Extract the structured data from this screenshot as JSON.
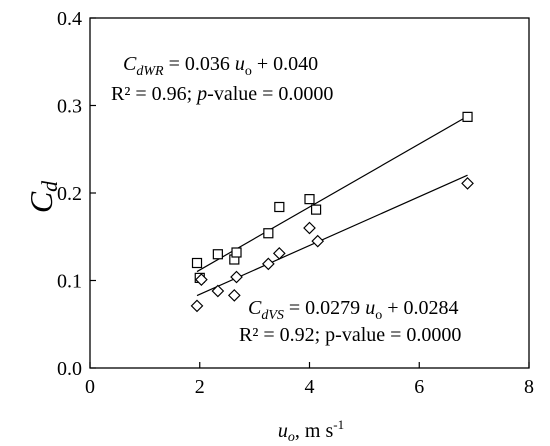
{
  "chart_data": {
    "type": "scatter",
    "xlim": [
      0,
      8
    ],
    "ylim": [
      0,
      0.4
    ],
    "x_ticks": [
      "0",
      "2",
      "4",
      "6",
      "8"
    ],
    "y_ticks": [
      "0.0",
      "0.1",
      "0.2",
      "0.3",
      "0.4"
    ],
    "xlabel": {
      "main": "u",
      "sub": "o",
      "rest": ", m s",
      "sup": "-1"
    },
    "ylabel": {
      "main": "C",
      "sub": "d"
    },
    "grid": false,
    "series": [
      {
        "marker": "square",
        "color": "#000000",
        "x": [
          1.95,
          2.0,
          2.33,
          2.63,
          2.67,
          3.25,
          3.45,
          4.0,
          4.12,
          6.88
        ],
        "y": [
          0.12,
          0.103,
          0.13,
          0.124,
          0.132,
          0.154,
          0.184,
          0.193,
          0.181,
          0.287
        ],
        "fit": {
          "slope": 0.036,
          "intercept": 0.04,
          "x_range": [
            1.95,
            6.88
          ]
        },
        "equation": {
          "lhs": "C",
          "lhs_sub": "dWR",
          "rhs_a": " = 0.036 ",
          "var": "u",
          "var_sub": "o",
          "rhs_b": " + 0.040"
        },
        "stats": {
          "r2": "R² = 0.96; ",
          "p_label": "p",
          "p_rest": "-value = 0.0000"
        }
      },
      {
        "marker": "diamond",
        "color": "#000000",
        "x": [
          1.95,
          2.03,
          2.33,
          2.63,
          2.67,
          3.25,
          3.45,
          4.0,
          4.15,
          6.88
        ],
        "y": [
          0.071,
          0.101,
          0.088,
          0.083,
          0.104,
          0.119,
          0.131,
          0.16,
          0.145,
          0.211
        ],
        "fit": {
          "slope": 0.0279,
          "intercept": 0.0284,
          "x_range": [
            1.95,
            6.88
          ]
        },
        "equation": {
          "lhs": "C",
          "lhs_sub": "dVS",
          "rhs_a": " = 0.0279 ",
          "var": "u",
          "var_sub": "o",
          "rhs_b": " + 0.0284"
        },
        "stats": {
          "r2": "R² = 0.92; p-value = 0.0000"
        }
      }
    ]
  }
}
